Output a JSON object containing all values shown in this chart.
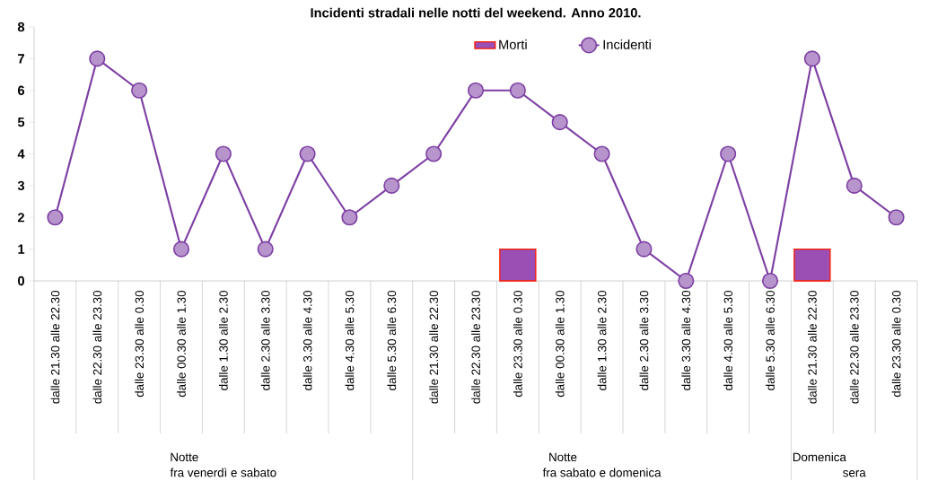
{
  "chart_data": {
    "type": "line",
    "title": "Incidenti stradali nelle notti del weekend. Anno 2010.",
    "categories": [
      "dalle 21.30 alle 22.30",
      "dalle 22.30 alle 23.30",
      "dalle 23.30 alle 0.30",
      "dalle 00.30 alle 1.30",
      "dalle 1.30 alle 2.30",
      "dalle 2.30 alle 3.30",
      "dalle 3.30 alle 4.30",
      "dalle 4.30 alle 5.30",
      "dalle 5.30 alle 6.30",
      "dalle 21.30 alle 22.30",
      "dalle 22.30 alle 23.30",
      "dalle 23.30 alle 0.30",
      "dalle 00.30 alle 1.30",
      "dalle 1.30 alle 2.30",
      "dalle 2.30 alle 3.30",
      "dalle 3.30 alle 4.30",
      "dalle 4.30 alle 5.30",
      "dalle 5.30 alle 6.30",
      "dalle 21.30 alle 22.30",
      "dalle 22.30 alle 23.30",
      "dalle 23.30 alle 0.30"
    ],
    "series": [
      {
        "name": "Morti",
        "type": "bar",
        "color": "#9b4fb4",
        "values": [
          null,
          null,
          null,
          null,
          null,
          null,
          null,
          null,
          null,
          null,
          null,
          1,
          null,
          null,
          null,
          null,
          null,
          null,
          1,
          null,
          null
        ]
      },
      {
        "name": "Incidenti",
        "color": "#7d3fa3",
        "marker": "circle",
        "values": [
          2,
          7,
          6,
          1,
          4,
          1,
          4,
          2,
          3,
          4,
          6,
          6,
          5,
          4,
          1,
          0,
          4,
          0,
          7,
          3,
          2
        ]
      }
    ],
    "annotations": [
      "Notte\nfra venerdì e sabato",
      "Notte\nfra sabato e domenica",
      "Domenica\nsera"
    ],
    "ylim": [
      0,
      8
    ],
    "yticks": [
      0,
      1,
      2,
      3,
      4,
      5,
      6,
      7,
      8
    ],
    "grid": false,
    "legend": "top"
  }
}
